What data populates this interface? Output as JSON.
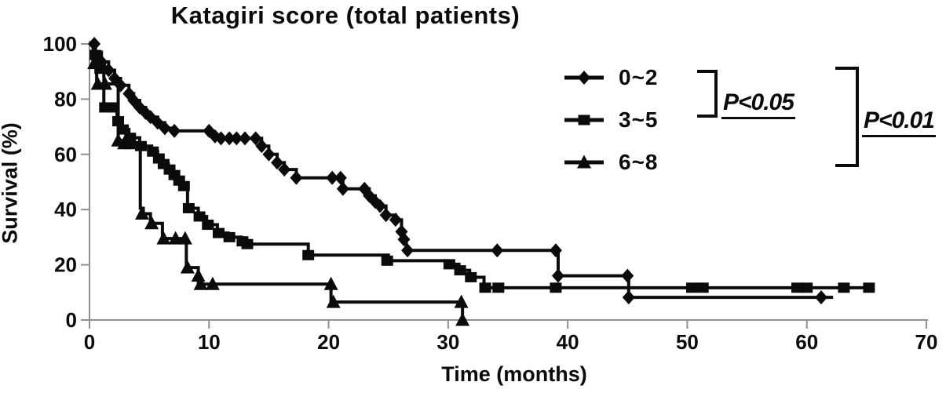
{
  "chart_data": {
    "type": "line",
    "subtype": "kaplan-meier-step",
    "title": "Katagiri score (total patients)",
    "xlabel": "Time (months)",
    "ylabel": "Survival (%)",
    "xlim": [
      0,
      70
    ],
    "ylim": [
      0,
      100
    ],
    "xticks": [
      0,
      10,
      20,
      30,
      40,
      50,
      60,
      70
    ],
    "yticks": [
      0,
      20,
      40,
      60,
      80,
      100
    ],
    "grid": false,
    "legend_position": "upper-right",
    "line_color": "#0b0b0b",
    "axis_color": "#909090",
    "series": [
      {
        "name": "0~2",
        "marker": "diamond",
        "start": [
          0,
          100
        ],
        "end_x": 62.2,
        "steps": [
          [
            0.5,
            97
          ],
          [
            1,
            93.5
          ],
          [
            1.6,
            90.5
          ],
          [
            2.1,
            87.5
          ],
          [
            2.6,
            85
          ],
          [
            3.3,
            82
          ],
          [
            3.7,
            79.5
          ],
          [
            4.2,
            77
          ],
          [
            4.7,
            75
          ],
          [
            5.1,
            73.5
          ],
          [
            5.7,
            71.5
          ],
          [
            6.3,
            69.5
          ],
          [
            7.1,
            68.5
          ],
          [
            10.2,
            66.5
          ],
          [
            10.9,
            65.8
          ],
          [
            14.4,
            63
          ],
          [
            15,
            60
          ],
          [
            15.7,
            57
          ],
          [
            16.3,
            54.5
          ],
          [
            17.3,
            51.5
          ],
          [
            21.2,
            47.5
          ],
          [
            23.4,
            45
          ],
          [
            23.9,
            42.8
          ],
          [
            24.3,
            41.3
          ],
          [
            24.8,
            38
          ],
          [
            25.6,
            36.3
          ],
          [
            26.1,
            32
          ],
          [
            26.3,
            29.2
          ],
          [
            26.5,
            25.2
          ],
          [
            39.2,
            16
          ],
          [
            45.1,
            8.2
          ]
        ],
        "markers": [
          [
            0.4,
            100
          ],
          [
            1,
            93.5
          ],
          [
            1.6,
            90.5
          ],
          [
            2.1,
            87.5
          ],
          [
            2.6,
            85
          ],
          [
            3.3,
            82
          ],
          [
            3.7,
            79.5
          ],
          [
            4.2,
            77
          ],
          [
            4.7,
            75
          ],
          [
            5.1,
            73.5
          ],
          [
            5.7,
            71.5
          ],
          [
            6.3,
            69.5
          ],
          [
            7.1,
            68.5
          ],
          [
            10,
            68.5
          ],
          [
            10.5,
            66.5
          ],
          [
            11,
            65.8
          ],
          [
            11.7,
            65.8
          ],
          [
            12.3,
            65.8
          ],
          [
            13,
            65.8
          ],
          [
            13.9,
            65.8
          ],
          [
            14.4,
            63
          ],
          [
            15,
            60
          ],
          [
            15.7,
            57
          ],
          [
            16.3,
            54.5
          ],
          [
            17.3,
            51.5
          ],
          [
            20.3,
            51.5
          ],
          [
            21,
            51.5
          ],
          [
            21.2,
            47.5
          ],
          [
            23,
            47.5
          ],
          [
            23.4,
            45
          ],
          [
            23.9,
            42.8
          ],
          [
            24.3,
            41.3
          ],
          [
            24.8,
            38
          ],
          [
            25.6,
            36.3
          ],
          [
            26.1,
            32
          ],
          [
            26.3,
            29.2
          ],
          [
            26.6,
            25.2
          ],
          [
            34.1,
            25.2
          ],
          [
            39,
            25.2
          ],
          [
            39.2,
            16
          ],
          [
            45,
            16
          ],
          [
            45.1,
            8.2
          ],
          [
            61.2,
            8.2
          ]
        ]
      },
      {
        "name": "3~5",
        "marker": "square",
        "start": [
          0,
          100
        ],
        "end_x": 65.4,
        "steps": [
          [
            0.4,
            96
          ],
          [
            0.8,
            91
          ],
          [
            1.2,
            77
          ],
          [
            2.3,
            72
          ],
          [
            2.7,
            69
          ],
          [
            3.3,
            66
          ],
          [
            4.2,
            63
          ],
          [
            5.2,
            61
          ],
          [
            5.7,
            58.5
          ],
          [
            6.1,
            56.5
          ],
          [
            6.6,
            54.5
          ],
          [
            7,
            52.5
          ],
          [
            7.4,
            50.5
          ],
          [
            7.8,
            48.5
          ],
          [
            8.2,
            40.5
          ],
          [
            9.1,
            37.5
          ],
          [
            9.8,
            34.5
          ],
          [
            10.7,
            31.5
          ],
          [
            11.6,
            30
          ],
          [
            12.7,
            28.5
          ],
          [
            13.1,
            27.5
          ],
          [
            18.3,
            23.5
          ],
          [
            25,
            21.5
          ],
          [
            30,
            20.2
          ],
          [
            30.9,
            18
          ],
          [
            31.8,
            15.5
          ],
          [
            33,
            11.7
          ]
        ],
        "markers": [
          [
            0.5,
            96
          ],
          [
            0.9,
            91
          ],
          [
            1.3,
            77
          ],
          [
            2,
            77
          ],
          [
            2.4,
            72
          ],
          [
            2.8,
            69
          ],
          [
            3.4,
            66
          ],
          [
            4.3,
            63
          ],
          [
            5.3,
            61
          ],
          [
            5.8,
            58.5
          ],
          [
            6.2,
            56.5
          ],
          [
            6.7,
            54.5
          ],
          [
            7.1,
            52.5
          ],
          [
            7.5,
            50.5
          ],
          [
            7.9,
            48.5
          ],
          [
            8.3,
            40.5
          ],
          [
            9.2,
            37.5
          ],
          [
            9.9,
            34.5
          ],
          [
            10.8,
            31.5
          ],
          [
            11.7,
            30
          ],
          [
            12.8,
            28.5
          ],
          [
            13.2,
            27.5
          ],
          [
            18.3,
            23.5
          ],
          [
            24.9,
            21.5
          ],
          [
            30.1,
            20.2
          ],
          [
            31,
            18
          ],
          [
            31.9,
            15.5
          ],
          [
            33.1,
            11.7
          ],
          [
            34.2,
            11.7
          ],
          [
            39,
            11.7
          ],
          [
            50.4,
            11.7
          ],
          [
            51.3,
            11.7
          ],
          [
            59.2,
            11.7
          ],
          [
            60,
            11.7
          ],
          [
            63.1,
            11.7
          ],
          [
            65.2,
            11.7
          ]
        ]
      },
      {
        "name": "6~8",
        "marker": "triangle",
        "start": [
          0,
          100
        ],
        "end_x": 31.5,
        "steps": [
          [
            0.3,
            93
          ],
          [
            0.6,
            85.5
          ],
          [
            2.4,
            65
          ],
          [
            2.7,
            64
          ],
          [
            4.25,
            40.5
          ],
          [
            4.5,
            38.5
          ],
          [
            5.1,
            35
          ],
          [
            6.1,
            29.5
          ],
          [
            8.1,
            19
          ],
          [
            9.1,
            13
          ],
          [
            20.2,
            6.5
          ],
          [
            31.2,
            0
          ]
        ],
        "markers": [
          [
            0.4,
            93
          ],
          [
            0.7,
            85.5
          ],
          [
            1.3,
            85.5
          ],
          [
            2.4,
            65
          ],
          [
            2.9,
            64
          ],
          [
            3.5,
            64
          ],
          [
            4.4,
            38.5
          ],
          [
            5.2,
            35
          ],
          [
            6.2,
            29.5
          ],
          [
            7.2,
            29.5
          ],
          [
            8,
            29.5
          ],
          [
            8.2,
            19
          ],
          [
            9.1,
            16
          ],
          [
            9.3,
            13
          ],
          [
            10.3,
            13
          ],
          [
            20.2,
            13
          ],
          [
            20.4,
            6.5
          ],
          [
            31.1,
            6.5
          ],
          [
            31.2,
            0
          ]
        ]
      }
    ],
    "annotations": [
      {
        "text": "P<0.05",
        "compares": [
          "0~2",
          "3~5"
        ]
      },
      {
        "text": "P<0.01",
        "compares": [
          "0~2",
          "3~5",
          "6~8"
        ]
      }
    ]
  }
}
